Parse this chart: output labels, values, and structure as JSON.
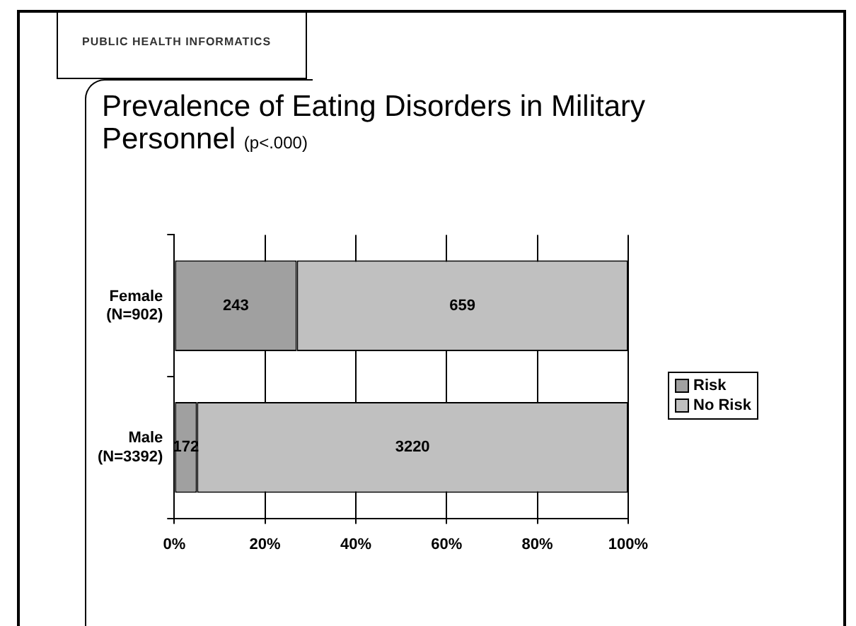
{
  "chart_data": {
    "type": "bar",
    "orientation": "horizontal",
    "stacked": true,
    "title": "Prevalence of Eating Disorders in Military Personnel",
    "subtitle": "(p<.000)",
    "annotations": [
      "PUBLIC HEALTH INFORMATICS",
      "243",
      "172",
      "659",
      "3220"
    ],
    "categories": [
      "Female\n(N=902)",
      "Male\n(N=3392)"
    ],
    "series": [
      {
        "name": "Risk",
        "color": "#a0a0a0",
        "values": [
          27,
          5
        ]
      },
      {
        "name": "No Risk",
        "color": "#c0c0c0",
        "values": [
          73,
          95
        ]
      }
    ],
    "xlim": [
      0,
      100
    ],
    "xticks": [
      {
        "value": 0,
        "label": "0%"
      },
      {
        "value": 20,
        "label": "20%"
      },
      {
        "value": 40,
        "label": "40%"
      },
      {
        "value": 60,
        "label": "60%"
      },
      {
        "value": 80,
        "label": "80%"
      },
      {
        "value": 100,
        "label": "100%"
      }
    ],
    "grid": "x",
    "legend": "right"
  }
}
